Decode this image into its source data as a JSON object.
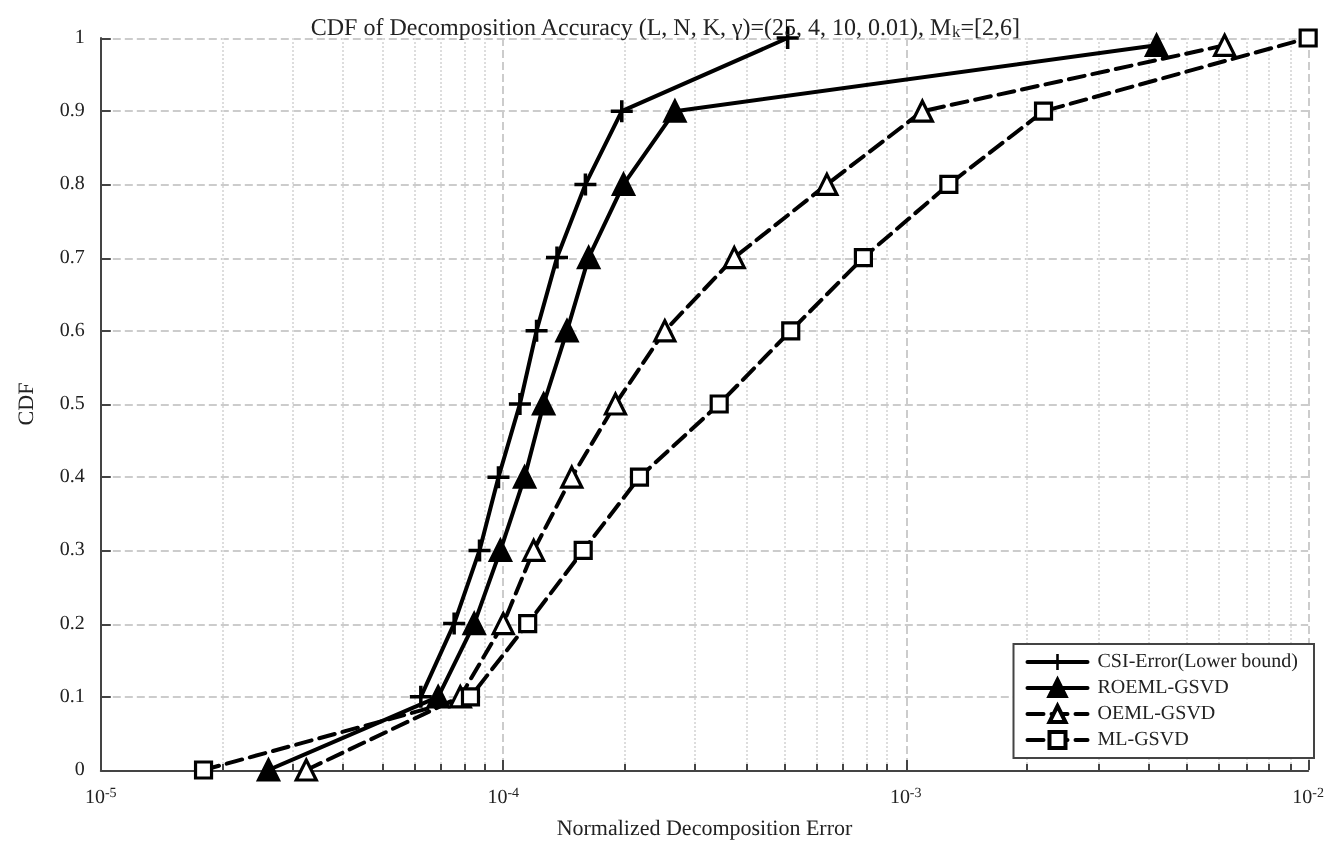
{
  "chart_data": {
    "type": "line",
    "title": "CDF of Decomposition Accuracy (L, N, K, γ)=(25, 4, 10, 0.01), M$_{k}$=[2,6]",
    "xlabel": "Normalized Decomposition Error",
    "ylabel": "CDF",
    "log": "x",
    "grid": true,
    "legend": "bottom right",
    "xlim": [
      1e-05,
      0.01
    ],
    "xticks": [
      {
        "value": 1e-05,
        "label": "10$^{-5}$"
      },
      {
        "value": 0.0001,
        "label": "10$^{-4}$"
      },
      {
        "value": 0.001,
        "label": "10$^{-3}$"
      },
      {
        "value": 0.01,
        "label": "10$^{-2}$"
      }
    ],
    "ylim": [
      0,
      1
    ],
    "yticks": [
      0,
      0.1,
      0.2,
      0.3,
      0.4,
      0.5,
      0.6,
      0.7,
      0.8,
      0.9,
      1
    ],
    "series": [
      {
        "name": "CSI-Error(Lower bound)",
        "color": "#000000",
        "marker": "cross",
        "line_style": "solid",
        "x": [
          6.24e-05,
          7.55e-05,
          8.73e-05,
          9.73e-05,
          0.00011,
          0.000121,
          0.000136,
          0.00016,
          0.000197,
          0.000509
        ],
        "values": [
          0.1,
          0.2,
          0.3,
          0.4,
          0.5,
          0.6,
          0.7,
          0.8,
          0.9,
          1
        ]
      },
      {
        "name": "ROEML-GSVD",
        "color": "#000000",
        "marker": "triangle",
        "line_style": "solid",
        "x": [
          2.61e-05,
          6.89e-05,
          8.47e-05,
          9.84e-05,
          0.000113,
          0.000126,
          0.000144,
          0.000163,
          0.000199,
          0.000267,
          0.0042
        ],
        "values": [
          0,
          0.1,
          0.2,
          0.3,
          0.4,
          0.5,
          0.6,
          0.7,
          0.8,
          0.9,
          0.99
        ]
      },
      {
        "name": "OEML-GSVD",
        "color": "#000000",
        "marker": "triangle",
        "line_style": "dashed",
        "x": [
          3.24e-05,
          7.82e-05,
          0.0001,
          0.000119,
          0.000148,
          0.00019,
          0.000252,
          0.000375,
          0.000637,
          0.0011,
          0.0062
        ],
        "values": [
          0,
          0.1,
          0.2,
          0.3,
          0.4,
          0.5,
          0.6,
          0.7,
          0.8,
          0.9,
          0.99
        ]
      },
      {
        "name": "ML-GSVD",
        "color": "#000000",
        "marker": "square",
        "line_style": "dashed",
        "x": [
          1.8e-05,
          8.29e-05,
          0.000115,
          0.000158,
          0.000218,
          0.000344,
          0.000518,
          0.000785,
          0.00128,
          0.0022,
          0.01
        ],
        "values": [
          0,
          0.1,
          0.2,
          0.3,
          0.4,
          0.5,
          0.6,
          0.7,
          0.8,
          0.9,
          1
        ]
      }
    ]
  }
}
